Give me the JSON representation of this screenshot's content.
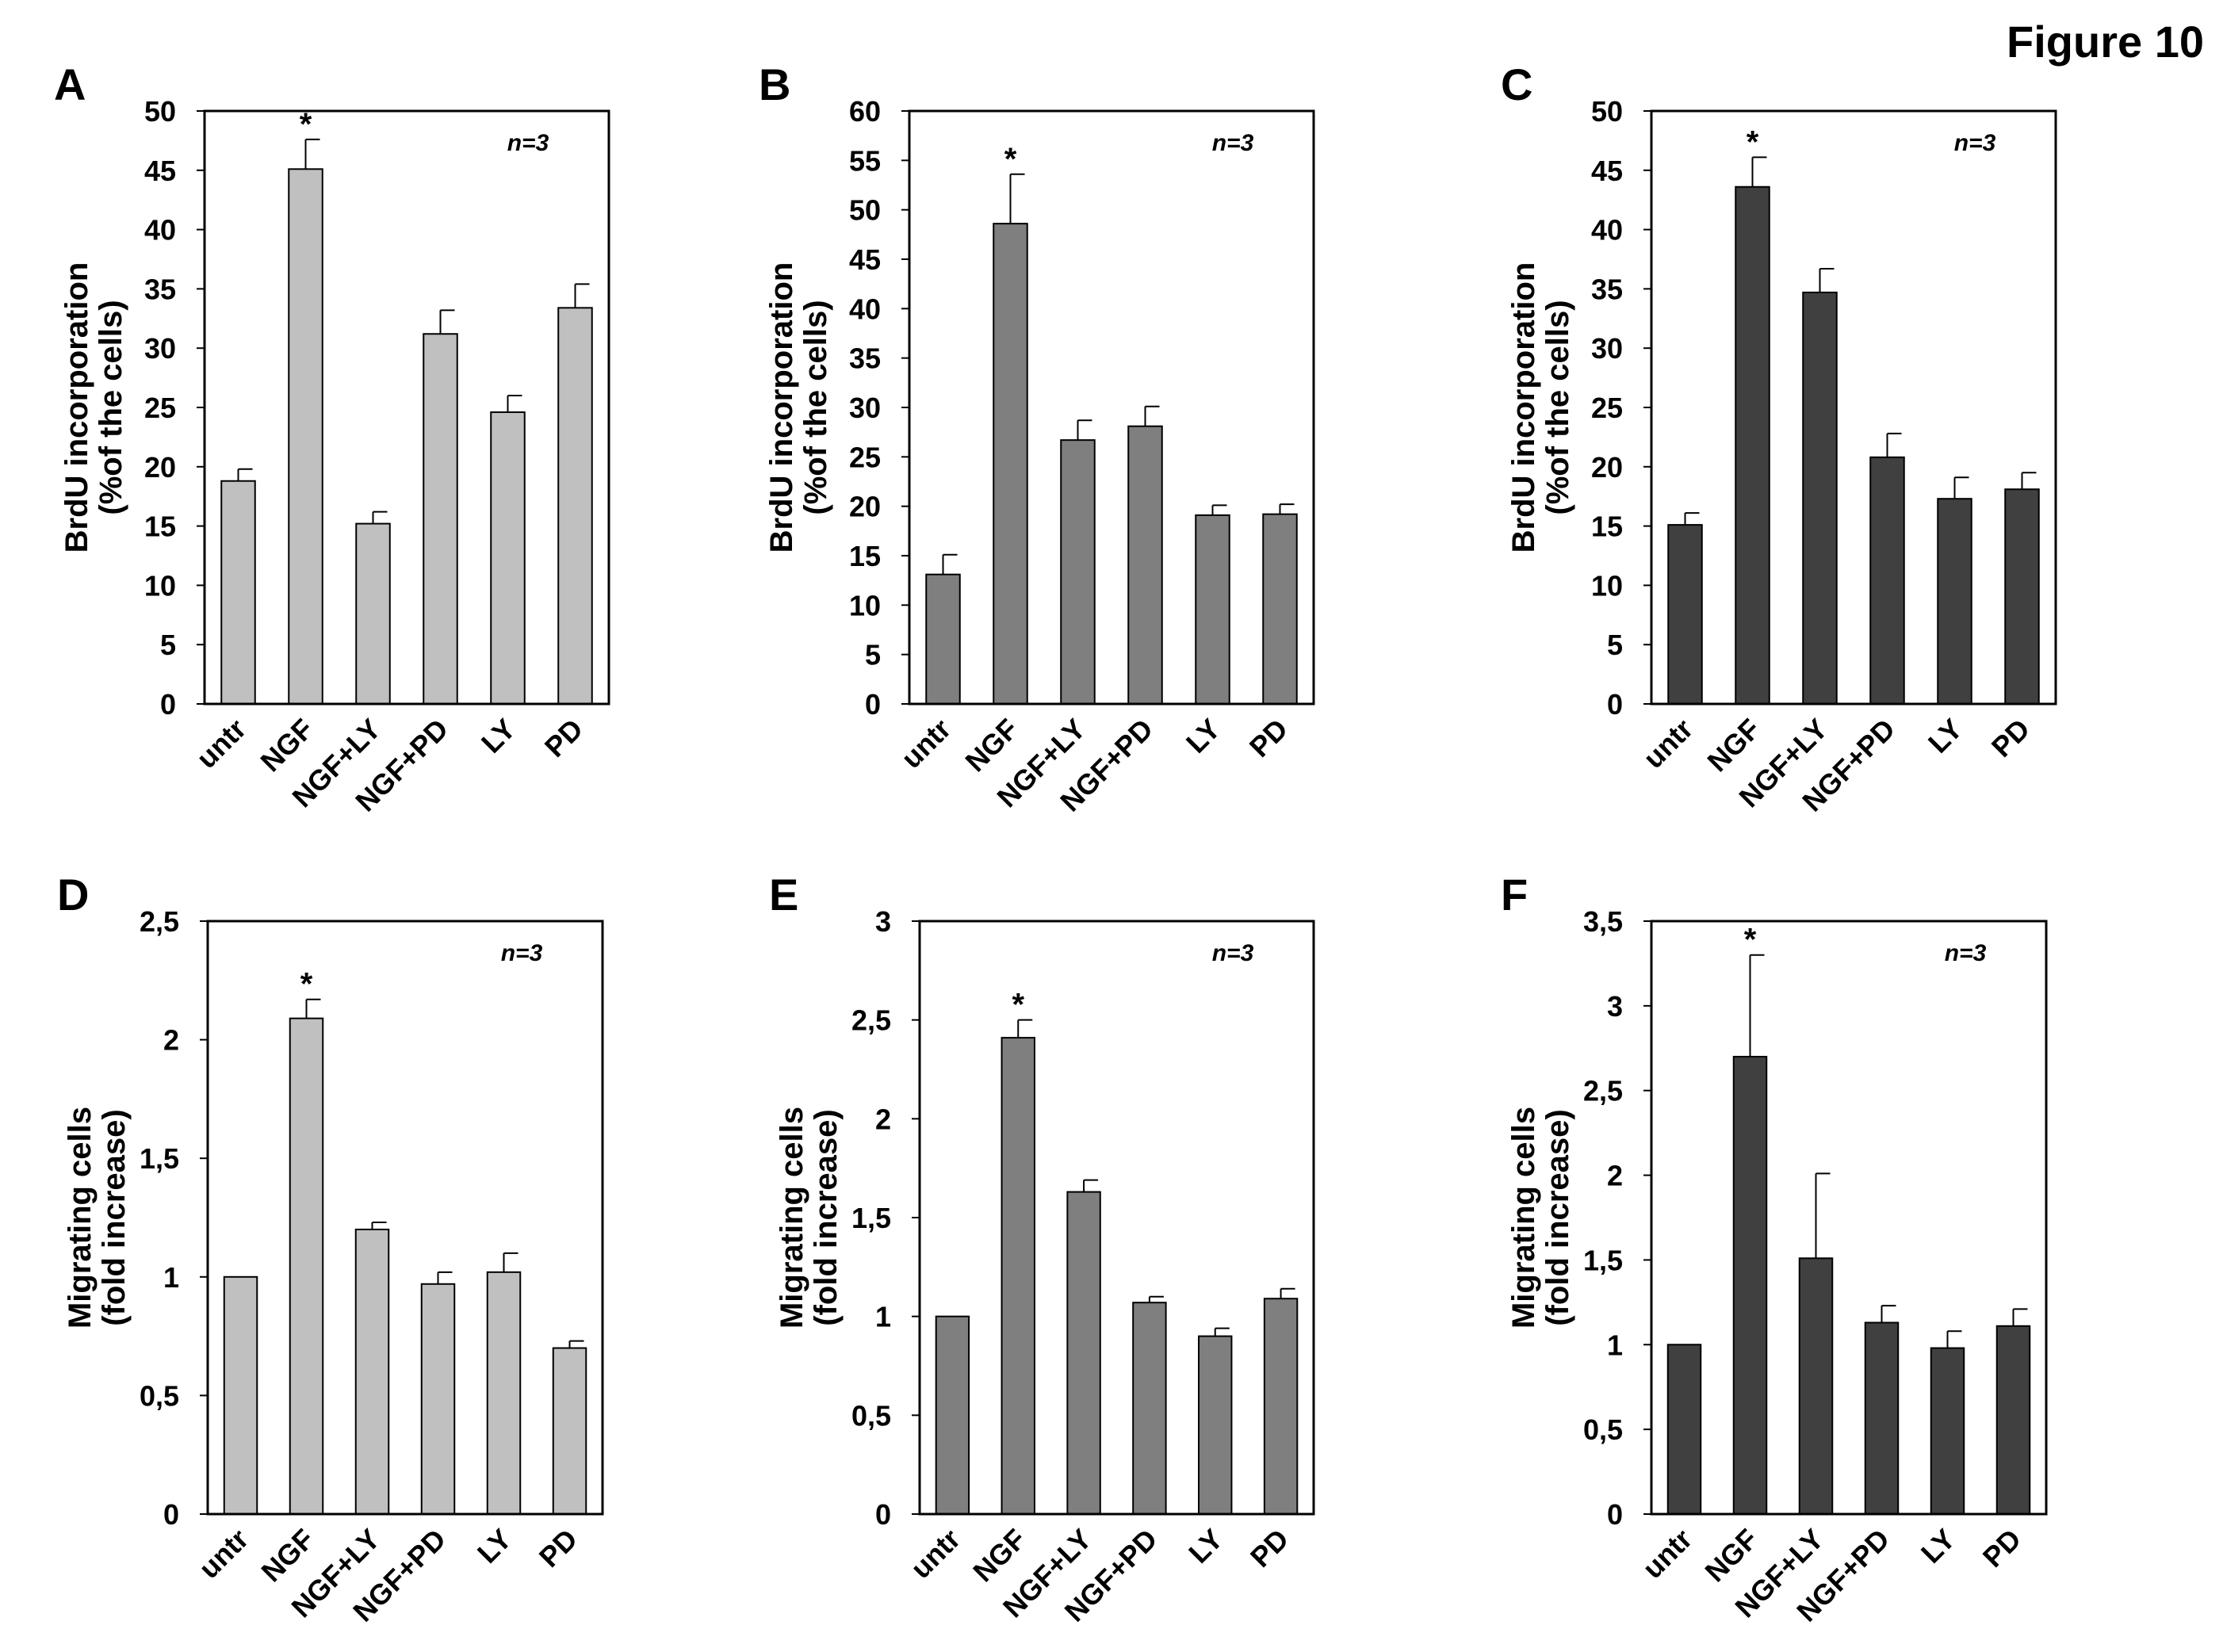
{
  "figure_title": "Figure 10",
  "chart_data": [
    {
      "panel": "A",
      "type": "bar",
      "categories": [
        "untr",
        "NGF",
        "NGF+LY",
        "NGF+PD",
        "LY",
        "PD"
      ],
      "values": [
        18.8,
        45.1,
        15.2,
        31.2,
        24.6,
        33.4
      ],
      "errors": [
        1.0,
        2.5,
        1.0,
        2.0,
        1.4,
        2.0
      ],
      "significant": [
        false,
        true,
        false,
        false,
        false,
        false
      ],
      "ylabel_line1": "BrdU incorporation",
      "ylabel_line2": "(%of the cells)",
      "yticks": [
        "0",
        "5",
        "10",
        "15",
        "20",
        "25",
        "30",
        "35",
        "40",
        "45",
        "50"
      ],
      "ylim": [
        0,
        50
      ],
      "annotation": "n=3",
      "color": "#c0c0c0"
    },
    {
      "panel": "B",
      "type": "bar",
      "categories": [
        "untr",
        "NGF",
        "NGF+LY",
        "NGF+PD",
        "LY",
        "PD"
      ],
      "values": [
        13.1,
        48.6,
        26.7,
        28.1,
        19.1,
        19.2
      ],
      "errors": [
        2.0,
        5.0,
        2.0,
        2.0,
        1.0,
        1.0
      ],
      "significant": [
        false,
        true,
        false,
        false,
        false,
        false
      ],
      "ylabel_line1": "BrdU incorporation",
      "ylabel_line2": "(%of the cells)",
      "yticks": [
        "0",
        "5",
        "10",
        "15",
        "20",
        "25",
        "30",
        "35",
        "40",
        "45",
        "50",
        "55",
        "60"
      ],
      "ylim": [
        0,
        60
      ],
      "annotation": "n=3",
      "color": "#7f7f7f"
    },
    {
      "panel": "C",
      "type": "bar",
      "categories": [
        "untr",
        "NGF",
        "NGF+LY",
        "NGF+PD",
        "LY",
        "PD"
      ],
      "values": [
        15.1,
        43.6,
        34.7,
        20.8,
        17.3,
        18.1
      ],
      "errors": [
        1.0,
        2.5,
        2.0,
        2.0,
        1.8,
        1.4
      ],
      "significant": [
        false,
        true,
        false,
        false,
        false,
        false
      ],
      "ylabel_line1": "BrdU incorporation",
      "ylabel_line2": "(%of the cells)",
      "yticks": [
        "0",
        "5",
        "10",
        "15",
        "20",
        "25",
        "30",
        "35",
        "40",
        "45",
        "50"
      ],
      "ylim": [
        0,
        50
      ],
      "annotation": "n=3",
      "color": "#404040"
    },
    {
      "panel": "D",
      "type": "bar",
      "categories": [
        "untr",
        "NGF",
        "NGF+LY",
        "NGF+PD",
        "LY",
        "PD"
      ],
      "values": [
        1.0,
        2.09,
        1.2,
        0.97,
        1.02,
        0.7
      ],
      "errors": [
        0,
        0.08,
        0.03,
        0.05,
        0.08,
        0.03
      ],
      "significant": [
        false,
        true,
        false,
        false,
        false,
        false
      ],
      "ylabel_line1": "Migrating cells",
      "ylabel_line2": "(fold increase)",
      "yticks": [
        "0",
        "0,5",
        "1",
        "1,5",
        "2",
        "2,5"
      ],
      "ylim": [
        0,
        2.5
      ],
      "annotation": "n=3",
      "color": "#c0c0c0"
    },
    {
      "panel": "E",
      "type": "bar",
      "categories": [
        "untr",
        "NGF",
        "NGF+LY",
        "NGF+PD",
        "LY",
        "PD"
      ],
      "values": [
        1.0,
        2.41,
        1.63,
        1.07,
        0.9,
        1.09
      ],
      "errors": [
        0,
        0.09,
        0.06,
        0.03,
        0.04,
        0.05
      ],
      "significant": [
        false,
        true,
        false,
        false,
        false,
        false
      ],
      "ylabel_line1": "Migrating cells",
      "ylabel_line2": "(fold increase)",
      "yticks": [
        "0",
        "0,5",
        "1",
        "1,5",
        "2",
        "2,5",
        "3"
      ],
      "ylim": [
        0,
        3
      ],
      "annotation": "n=3",
      "color": "#7f7f7f"
    },
    {
      "panel": "F",
      "type": "bar",
      "categories": [
        "untr",
        "NGF",
        "NGF+LY",
        "NGF+PD",
        "LY",
        "PD"
      ],
      "values": [
        1.0,
        2.7,
        1.51,
        1.13,
        0.98,
        1.11
      ],
      "errors": [
        0,
        0.6,
        0.5,
        0.1,
        0.1,
        0.1
      ],
      "significant": [
        false,
        true,
        false,
        false,
        false,
        false
      ],
      "ylabel_line1": "Migrating cells",
      "ylabel_line2": "(fold increase)",
      "yticks": [
        "0",
        "0,5",
        "1",
        "1,5",
        "2",
        "2,5",
        "3",
        "3,5"
      ],
      "ylim": [
        0,
        3.5
      ],
      "annotation": "n=3",
      "color": "#404040"
    }
  ]
}
